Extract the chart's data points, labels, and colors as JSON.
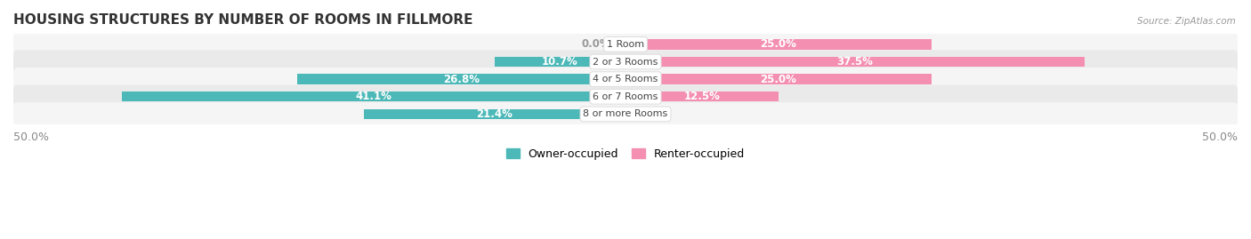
{
  "title": "HOUSING STRUCTURES BY NUMBER OF ROOMS IN FILLMORE",
  "source": "Source: ZipAtlas.com",
  "categories": [
    "1 Room",
    "2 or 3 Rooms",
    "4 or 5 Rooms",
    "6 or 7 Rooms",
    "8 or more Rooms"
  ],
  "owner_values": [
    0.0,
    10.7,
    26.8,
    41.1,
    21.4
  ],
  "renter_values": [
    25.0,
    37.5,
    25.0,
    12.5,
    0.0
  ],
  "owner_color": "#4db8b8",
  "renter_color": "#f48fb1",
  "row_bg_colors": [
    "#f5f5f5",
    "#eaeaea"
  ],
  "axis_limit": 50.0,
  "label_inside_color": "#ffffff",
  "label_outside_color": "#999999",
  "title_fontsize": 11,
  "axis_fontsize": 9,
  "bar_label_fontsize": 8.5,
  "cat_label_fontsize": 8,
  "legend_fontsize": 9
}
